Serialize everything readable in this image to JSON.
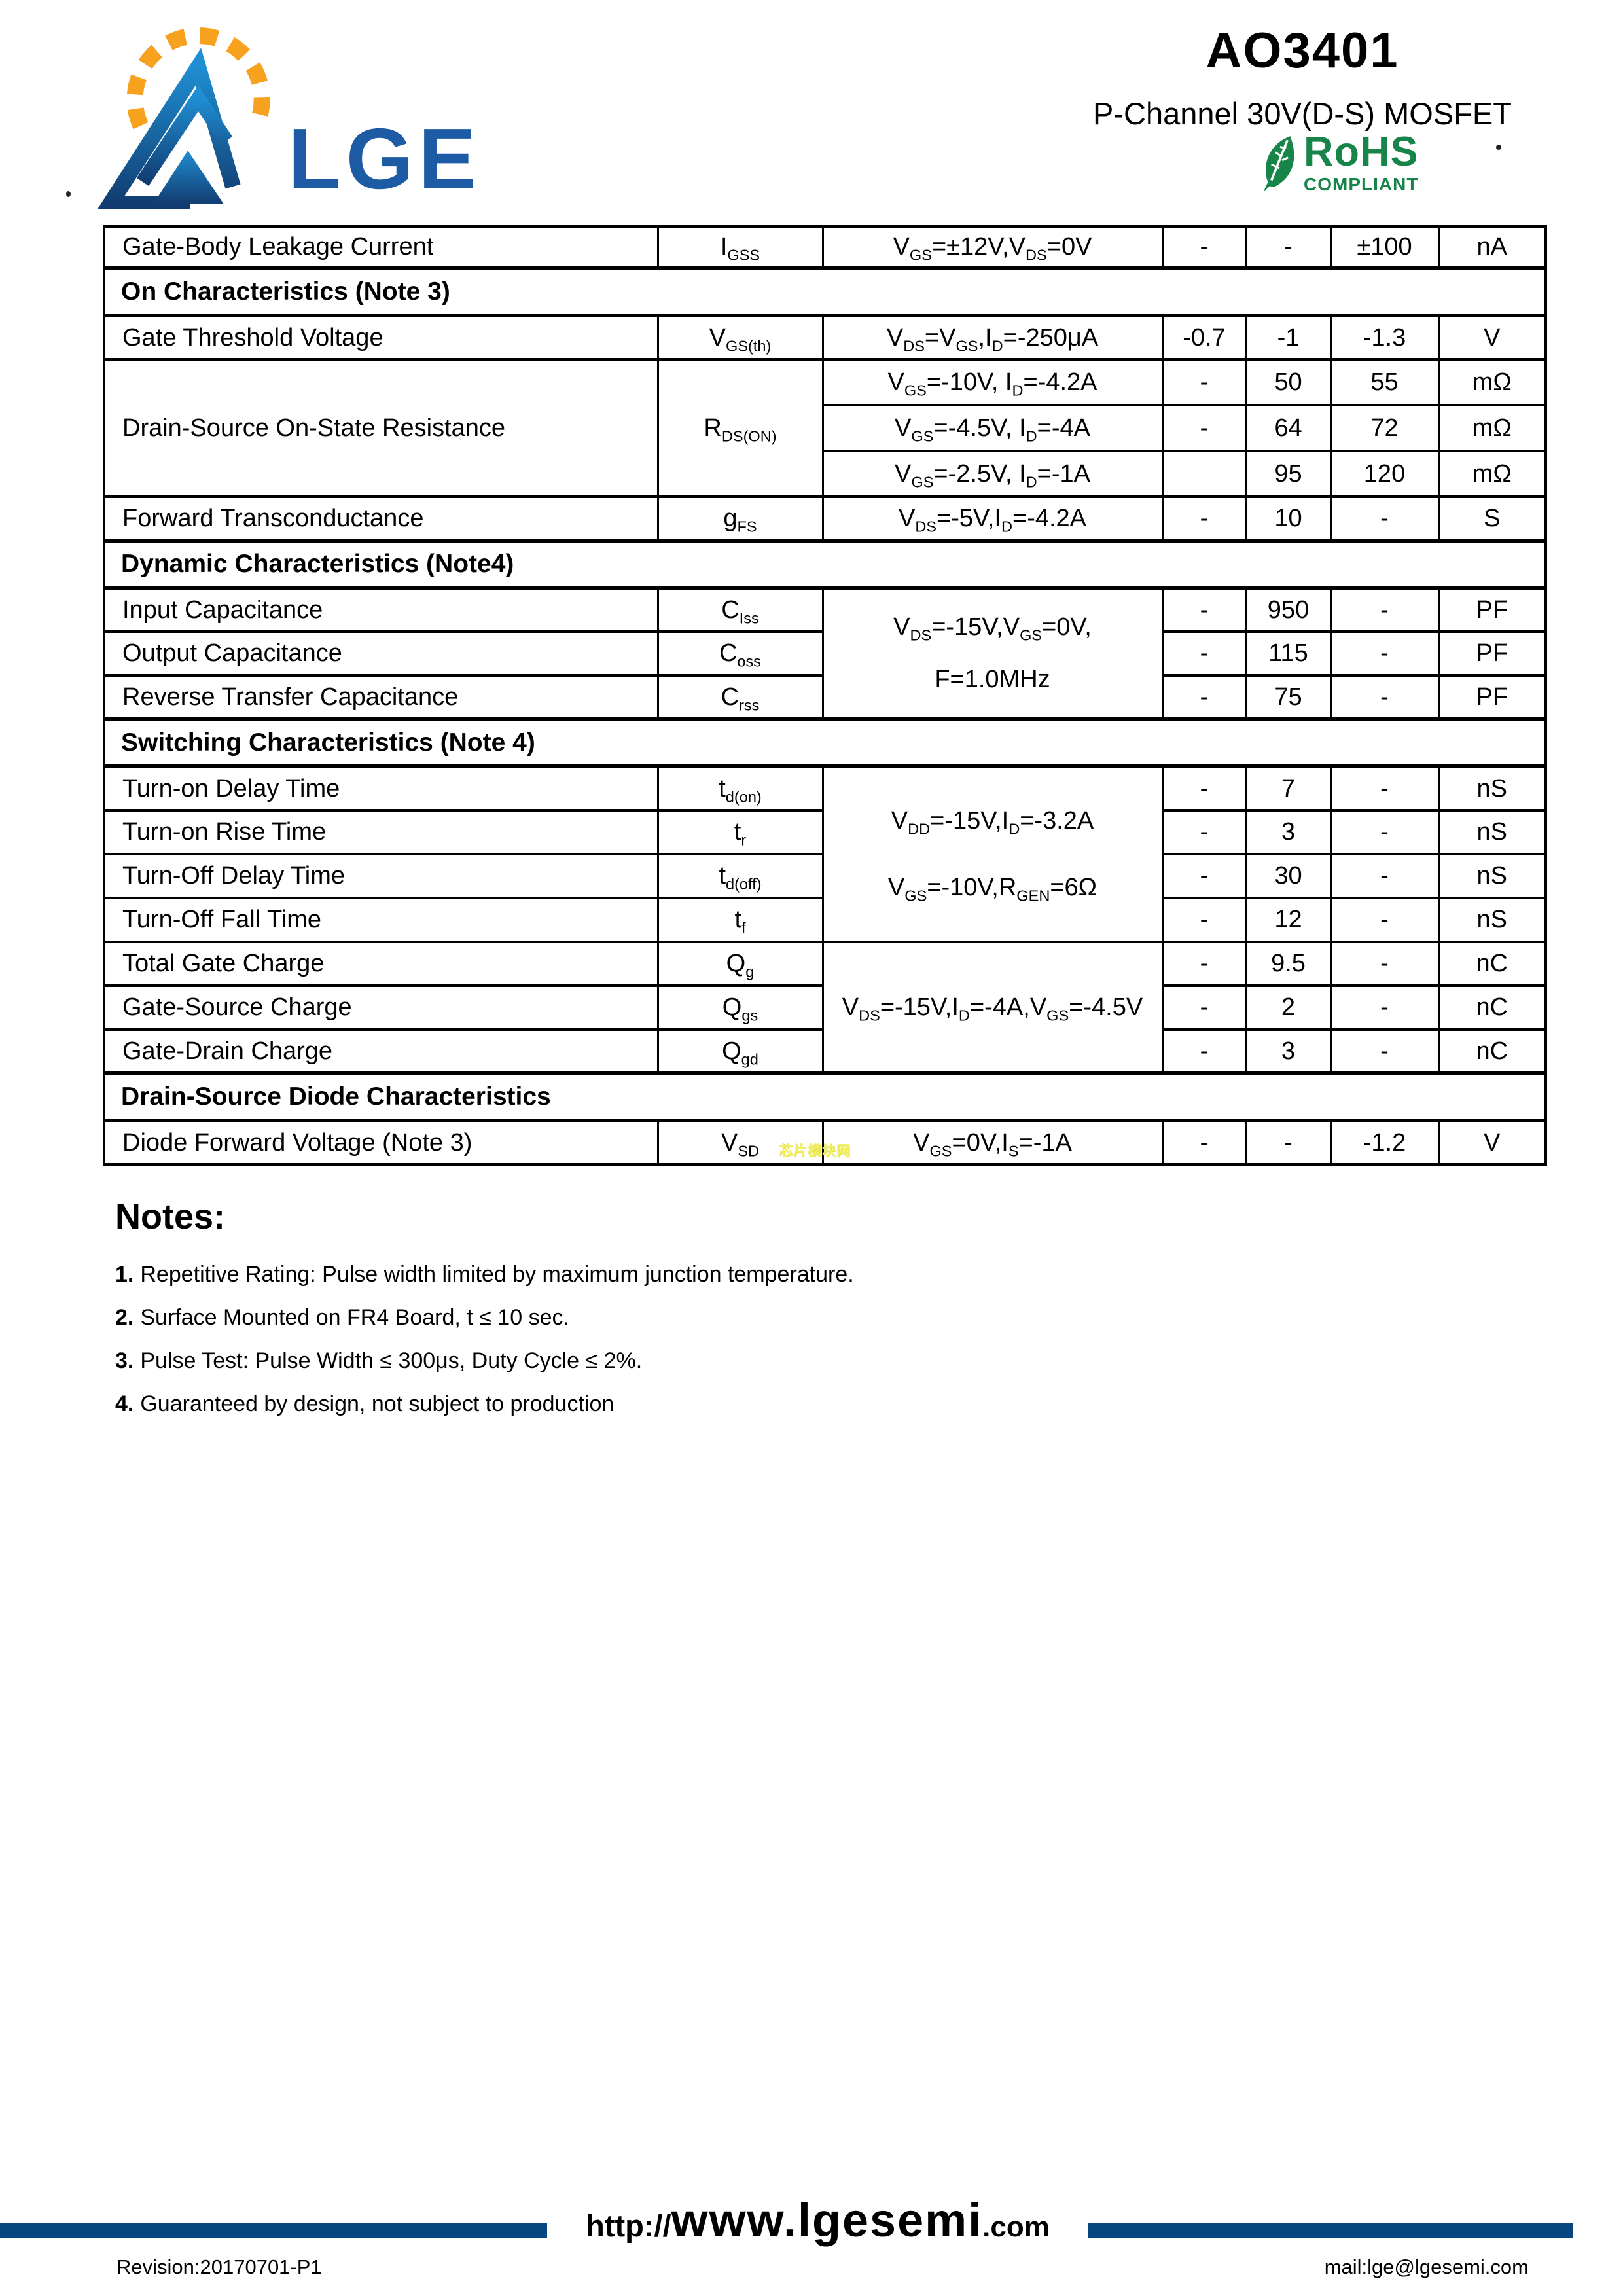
{
  "header": {
    "part_number": "AO3401",
    "subtitle": "P-Channel 30V(D-S) MOSFET",
    "logo_text": "LGE",
    "rohs": {
      "title": "RoHS",
      "subtitle": "COMPLIANT"
    }
  },
  "colors": {
    "navy_bar": "#074781",
    "logo_blue_light": "#1f8ed2",
    "logo_blue_dark": "#113c70",
    "logo_text_blue": "#1d5ca5",
    "orange": "#f6a21f",
    "rohs_green": "#17854a",
    "watermark_yellow": "#f0ee6a"
  },
  "watermark": "芯片模块网",
  "table": {
    "rows": [
      {
        "param": "Gate-Body Leakage Current",
        "symbol": "I~GSS~",
        "cond": "V~GS~=±12V,V~DS~=0V",
        "min": "-",
        "typ": "-",
        "max": "±100",
        "unit": "nA"
      },
      {
        "section": "On Characteristics (Note 3)"
      },
      {
        "param": "Gate Threshold Voltage",
        "symbol": "V~GS(th)~",
        "cond": "V~DS~=V~GS~,I~D~=-250μA",
        "min": "-0.7",
        "typ": "-1",
        "max": "-1.3",
        "unit": "V"
      },
      {
        "param": "Drain-Source On-State Resistance",
        "symbol": "R~DS(ON)~",
        "cond": "V~GS~=-10V, I~D~=-4.2A",
        "min": "-",
        "typ": "50",
        "max": "55",
        "unit": "mΩ"
      },
      {
        "cond": "V~GS~=-4.5V, I~D~=-4A",
        "min": "-",
        "typ": "64",
        "max": "72",
        "unit": "mΩ"
      },
      {
        "cond": "V~GS~=-2.5V, I~D~=-1A",
        "min": "",
        "typ": "95",
        "max": "120",
        "unit": "mΩ"
      },
      {
        "param": "Forward Transconductance",
        "symbol": "g~FS~",
        "cond": "V~DS~=-5V,I~D~=-4.2A",
        "min": "-",
        "typ": "10",
        "max": "-",
        "unit": "S"
      },
      {
        "section": "Dynamic Characteristics (Note4)"
      },
      {
        "param": "Input Capacitance",
        "symbol": "C~Iss~",
        "cond_line1": "V~DS~=-15V,V~GS~=0V,",
        "cond_line2": "F=1.0MHz",
        "min": "-",
        "typ": "950",
        "max": "-",
        "unit": "PF"
      },
      {
        "param": "Output Capacitance",
        "symbol": "C~oss~",
        "min": "-",
        "typ": "115",
        "max": "-",
        "unit": "PF"
      },
      {
        "param": "Reverse Transfer Capacitance",
        "symbol": "C~rss~",
        "min": "-",
        "typ": "75",
        "max": "-",
        "unit": "PF"
      },
      {
        "section": "Switching Characteristics (Note 4)"
      },
      {
        "param": "Turn-on Delay Time",
        "symbol": "t~d(on)~",
        "cond_line1": "V~DD~=-15V,I~D~=-3.2A",
        "cond_line2": "V~GS~=-10V,R~GEN~=6Ω",
        "min": "-",
        "typ": "7",
        "max": "-",
        "unit": "nS"
      },
      {
        "param": "Turn-on Rise Time",
        "symbol": "t~r~",
        "min": "-",
        "typ": "3",
        "max": "-",
        "unit": "nS"
      },
      {
        "param": "Turn-Off Delay Time",
        "symbol": "t~d(off)~",
        "min": "-",
        "typ": "30",
        "max": "-",
        "unit": "nS"
      },
      {
        "param": "Turn-Off Fall Time",
        "symbol": "t~f~",
        "min": "-",
        "typ": "12",
        "max": "-",
        "unit": "nS"
      },
      {
        "param": "Total Gate Charge",
        "symbol": "Q~g~",
        "cond": "V~DS~=-15V,I~D~=-4A,V~GS~=-4.5V",
        "min": "-",
        "typ": "9.5",
        "max": "-",
        "unit": "nC"
      },
      {
        "param": "Gate-Source Charge",
        "symbol": "Q~gs~",
        "min": "-",
        "typ": "2",
        "max": "-",
        "unit": "nC"
      },
      {
        "param": "Gate-Drain Charge",
        "symbol": "Q~gd~",
        "min": "-",
        "typ": "3",
        "max": "-",
        "unit": "nC"
      },
      {
        "section": "Drain-Source Diode Characteristics"
      },
      {
        "param": "Diode Forward Voltage (Note 3)",
        "symbol": "V~SD~",
        "cond": "V~GS~=0V,I~S~=-1A",
        "min": "-",
        "typ": "-",
        "max": "-1.2",
        "unit": "V"
      }
    ]
  },
  "notes": {
    "heading": "Notes:",
    "items": [
      {
        "num": "1.",
        "text": "Repetitive Rating: Pulse width limited by maximum junction temperature."
      },
      {
        "num": "2.",
        "text": "Surface Mounted on FR4 Board, t ≤ 10 sec."
      },
      {
        "num": "3.",
        "text": "Pulse Test: Pulse Width ≤ 300μs, Duty Cycle ≤ 2%."
      },
      {
        "num": "4.",
        "text": "Guaranteed by design, not subject to production"
      }
    ]
  },
  "footer": {
    "url_prefix": "http://",
    "url_main": "www.lgesemi",
    "url_suffix": ".com",
    "revision": "Revision:20170701-P1",
    "mail": "mail:lge@lgesemi.com"
  }
}
